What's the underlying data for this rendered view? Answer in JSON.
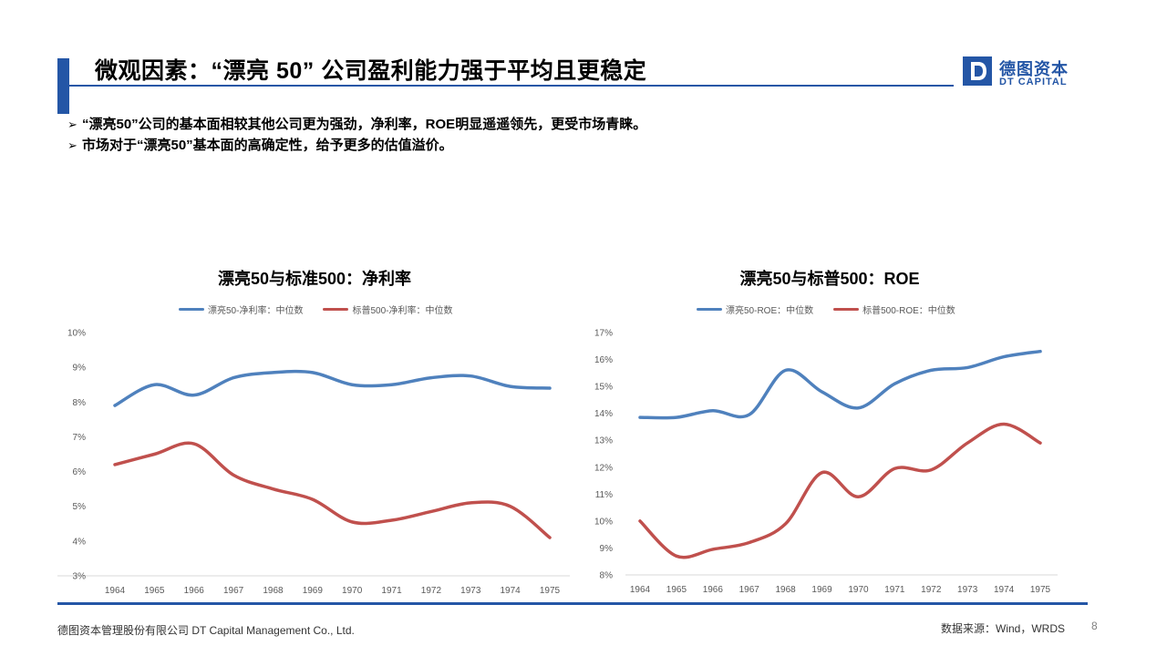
{
  "header": {
    "title": "微观因素：“漂亮 50” 公司盈利能力强于平均且更稳定",
    "logo_cn": "德图资本",
    "logo_en": "DT CAPITAL"
  },
  "bullets": [
    "“漂亮50”公司的基本面相较其他公司更为强劲，净利率，ROE明显遥遥领先，更受市场青睐。",
    "市场对于“漂亮50”基本面的高确定性，给予更多的估值溢价。"
  ],
  "footer": {
    "company": "德图资本管理股份有限公司  DT Capital Management  Co., Ltd.",
    "source": "数据来源：Wind，WRDS",
    "page": "8"
  },
  "colors": {
    "accent": "#2456a6",
    "series_blue": "#4f81bd",
    "series_red": "#c0504d"
  },
  "chart_data": [
    {
      "type": "line",
      "title": "漂亮50与标准500：净利率",
      "categories": [
        "1964",
        "1965",
        "1966",
        "1967",
        "1968",
        "1969",
        "1970",
        "1971",
        "1972",
        "1973",
        "1974",
        "1975"
      ],
      "ylim": [
        3,
        10
      ],
      "yticks": [
        "3%",
        "4%",
        "5%",
        "6%",
        "7%",
        "8%",
        "9%",
        "10%"
      ],
      "legend_position": "top",
      "series": [
        {
          "name": "漂亮50-净利率：中位数",
          "color": "#4f81bd",
          "values": [
            7.9,
            8.5,
            8.2,
            8.7,
            8.85,
            8.85,
            8.5,
            8.5,
            8.7,
            8.75,
            8.45,
            8.4
          ]
        },
        {
          "name": "标普500-净利率：中位数",
          "color": "#c0504d",
          "values": [
            6.2,
            6.5,
            6.8,
            5.9,
            5.5,
            5.2,
            4.55,
            4.6,
            4.85,
            5.1,
            5.0,
            4.1
          ]
        }
      ]
    },
    {
      "type": "line",
      "title": "漂亮50与标普500：ROE",
      "categories": [
        "1964",
        "1965",
        "1966",
        "1967",
        "1968",
        "1969",
        "1970",
        "1971",
        "1972",
        "1973",
        "1974",
        "1975"
      ],
      "ylim": [
        8,
        17
      ],
      "yticks": [
        "8%",
        "9%",
        "10%",
        "11%",
        "12%",
        "13%",
        "14%",
        "15%",
        "16%",
        "17%"
      ],
      "legend_position": "top",
      "series": [
        {
          "name": "漂亮50-ROE：中位数",
          "color": "#4f81bd",
          "values": [
            13.85,
            13.85,
            14.1,
            13.95,
            15.6,
            14.8,
            14.2,
            15.1,
            15.6,
            15.7,
            16.1,
            16.3
          ]
        },
        {
          "name": "标普500-ROE：中位数",
          "color": "#c0504d",
          "values": [
            10.0,
            8.7,
            8.95,
            9.2,
            9.9,
            11.8,
            10.9,
            11.95,
            11.9,
            12.9,
            13.6,
            12.9
          ]
        }
      ]
    }
  ]
}
